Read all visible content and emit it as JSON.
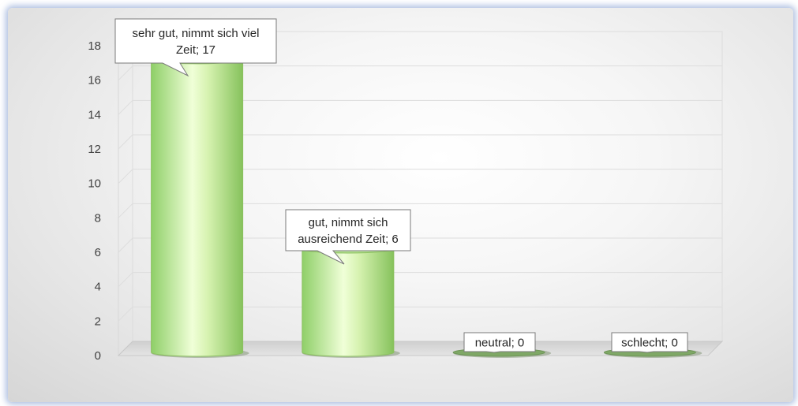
{
  "chart_data": {
    "type": "bar",
    "categories": [
      "sehr gut, nimmt sich viel Zeit",
      "gut, nimmt sich ausreichend Zeit",
      "neutral",
      "schlecht"
    ],
    "values": [
      17,
      6,
      0,
      0
    ],
    "data_labels": [
      [
        "sehr gut, nimmt sich viel",
        "Zeit; 17"
      ],
      [
        "gut, nimmt sich",
        "ausreichend Zeit; 6"
      ],
      [
        "neutral; 0"
      ],
      [
        "schlecht; 0"
      ]
    ],
    "y_ticks": [
      "0",
      "2",
      "4",
      "6",
      "8",
      "10",
      "12",
      "14",
      "16",
      "18"
    ],
    "ylim": [
      0,
      18
    ],
    "title": "",
    "xlabel": "",
    "ylabel": "",
    "grid": true,
    "legend": false,
    "style": "3d-cylinder",
    "bar_color": "#b8e08c",
    "bar_edge_color": "#8cc060"
  }
}
